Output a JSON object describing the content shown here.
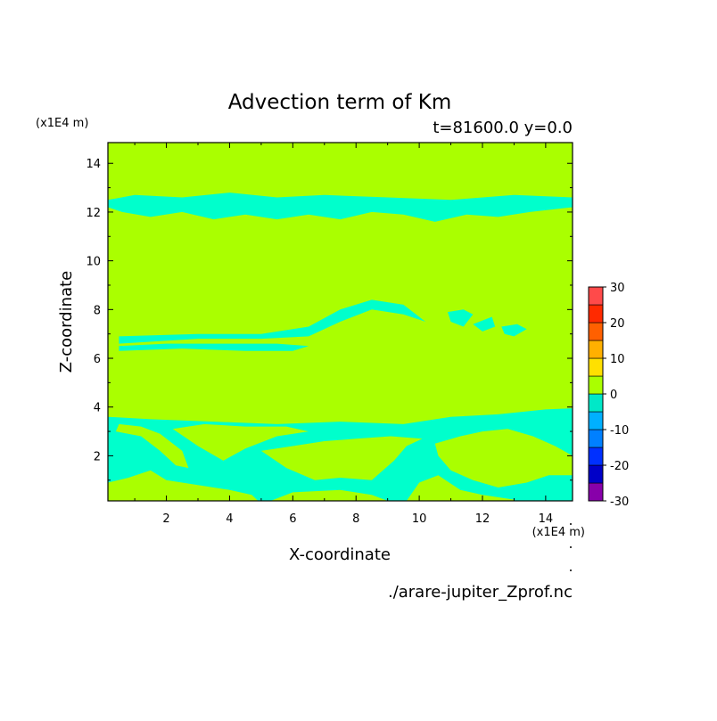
{
  "chart_data": {
    "type": "heatmap",
    "title": "Advection term of Km",
    "subtitle": "t=81600.0 y=0.0",
    "xlabel": "X-coordinate",
    "ylabel": "Z-coordinate",
    "x_unit": "(x1E4 m)",
    "y_unit": "(x1E4 m)",
    "source_file": "./arare-jupiter_Zprof.nc",
    "xlim": [
      0.15,
      14.85
    ],
    "ylim": [
      0.15,
      14.85
    ],
    "x_ticks": [
      "2",
      "4",
      "6",
      "8",
      "10",
      "12",
      "14"
    ],
    "x_tick_values": [
      2,
      4,
      6,
      8,
      10,
      12,
      14
    ],
    "y_ticks": [
      "2",
      "4",
      "6",
      "8",
      "10",
      "12",
      "14"
    ],
    "y_tick_values": [
      2,
      4,
      6,
      8,
      10,
      12,
      14
    ],
    "colorbar": {
      "levels": [
        -30,
        -25,
        -20,
        -15,
        -10,
        -5,
        0,
        5,
        10,
        15,
        20,
        25,
        30
      ],
      "labels": [
        "30",
        "20",
        "10",
        "0",
        "-10",
        "-20",
        "-30"
      ],
      "label_values": [
        30,
        20,
        10,
        0,
        -10,
        -20,
        -30
      ],
      "colors": [
        "#8800aa",
        "#0000c8",
        "#0030ff",
        "#0080ff",
        "#00b0ff",
        "#00e8c8",
        "#aaff00",
        "#ffe000",
        "#ffb000",
        "#ff6000",
        "#ff2a00",
        "#ff4a4a"
      ]
    },
    "background_interval": "0 to 5",
    "background_color": "#aaff00",
    "negative_color": "#00ffcc",
    "negative_regions": [
      {
        "label": "band near z=12.2",
        "polygon": [
          [
            0.15,
            12.5
          ],
          [
            1.0,
            12.7
          ],
          [
            2.5,
            12.6
          ],
          [
            4.0,
            12.8
          ],
          [
            5.5,
            12.6
          ],
          [
            7.0,
            12.7
          ],
          [
            9.0,
            12.6
          ],
          [
            11.0,
            12.5
          ],
          [
            13.0,
            12.7
          ],
          [
            14.85,
            12.6
          ],
          [
            14.85,
            12.2
          ],
          [
            13.5,
            12.0
          ],
          [
            12.5,
            11.8
          ],
          [
            11.5,
            11.9
          ],
          [
            10.5,
            11.6
          ],
          [
            9.5,
            11.9
          ],
          [
            8.5,
            12.0
          ],
          [
            7.5,
            11.7
          ],
          [
            6.5,
            11.9
          ],
          [
            5.5,
            11.7
          ],
          [
            4.5,
            11.9
          ],
          [
            3.5,
            11.7
          ],
          [
            2.5,
            12.0
          ],
          [
            1.5,
            11.8
          ],
          [
            0.6,
            12.0
          ],
          [
            0.15,
            12.2
          ]
        ]
      },
      {
        "label": "upper strip near z=7",
        "polygon": [
          [
            0.5,
            6.9
          ],
          [
            3.0,
            7.0
          ],
          [
            5.0,
            7.0
          ],
          [
            6.5,
            7.3
          ],
          [
            7.5,
            8.0
          ],
          [
            8.5,
            8.4
          ],
          [
            9.5,
            8.2
          ],
          [
            10.2,
            7.5
          ],
          [
            9.5,
            7.8
          ],
          [
            8.5,
            8.0
          ],
          [
            7.5,
            7.5
          ],
          [
            6.5,
            6.9
          ],
          [
            5.0,
            6.8
          ],
          [
            3.0,
            6.8
          ],
          [
            0.5,
            6.6
          ]
        ]
      },
      {
        "label": "lower strip near z=6.5",
        "polygon": [
          [
            0.5,
            6.5
          ],
          [
            2.0,
            6.6
          ],
          [
            4.0,
            6.6
          ],
          [
            5.5,
            6.6
          ],
          [
            6.5,
            6.5
          ],
          [
            6.0,
            6.3
          ],
          [
            4.5,
            6.3
          ],
          [
            2.5,
            6.4
          ],
          [
            0.5,
            6.3
          ]
        ]
      },
      {
        "label": "blob near x=11.5",
        "polygon": [
          [
            10.9,
            7.9
          ],
          [
            11.4,
            8.0
          ],
          [
            11.7,
            7.8
          ],
          [
            11.4,
            7.3
          ],
          [
            11.0,
            7.5
          ]
        ]
      },
      {
        "label": "blob near x=12",
        "polygon": [
          [
            11.7,
            7.4
          ],
          [
            12.3,
            7.7
          ],
          [
            12.4,
            7.3
          ],
          [
            12.0,
            7.1
          ]
        ]
      },
      {
        "label": "blob near x=12.9",
        "polygon": [
          [
            12.6,
            7.3
          ],
          [
            13.1,
            7.4
          ],
          [
            13.4,
            7.2
          ],
          [
            13.0,
            6.9
          ],
          [
            12.7,
            7.0
          ]
        ]
      },
      {
        "label": "bottom band",
        "polygon": [
          [
            0.15,
            3.6
          ],
          [
            1.5,
            3.5
          ],
          [
            3.5,
            3.4
          ],
          [
            5.5,
            3.3
          ],
          [
            7.5,
            3.4
          ],
          [
            9.5,
            3.3
          ],
          [
            11.0,
            3.6
          ],
          [
            12.5,
            3.7
          ],
          [
            14.0,
            3.9
          ],
          [
            14.85,
            3.95
          ],
          [
            14.85,
            0.15
          ],
          [
            0.15,
            0.15
          ]
        ]
      }
    ],
    "positive_holes": [
      {
        "label": "left lobe",
        "polygon": [
          [
            0.4,
            3.0
          ],
          [
            1.2,
            2.8
          ],
          [
            1.8,
            2.2
          ],
          [
            2.3,
            1.6
          ],
          [
            2.7,
            1.5
          ],
          [
            2.5,
            2.2
          ],
          [
            1.8,
            2.9
          ],
          [
            1.2,
            3.2
          ],
          [
            0.5,
            3.3
          ]
        ]
      },
      {
        "label": "lower-left gap",
        "polygon": [
          [
            0.15,
            0.9
          ],
          [
            0.8,
            1.1
          ],
          [
            1.5,
            1.4
          ],
          [
            2.0,
            1.0
          ],
          [
            3.0,
            0.8
          ],
          [
            4.0,
            0.6
          ],
          [
            4.7,
            0.4
          ],
          [
            4.9,
            0.15
          ],
          [
            0.15,
            0.15
          ]
        ]
      },
      {
        "label": "mid pocket",
        "polygon": [
          [
            2.2,
            3.1
          ],
          [
            3.0,
            2.4
          ],
          [
            3.8,
            1.8
          ],
          [
            4.5,
            2.3
          ],
          [
            5.5,
            2.8
          ],
          [
            6.5,
            3.0
          ],
          [
            5.8,
            3.2
          ],
          [
            4.5,
            3.2
          ],
          [
            3.2,
            3.3
          ]
        ]
      },
      {
        "label": "central gap",
        "polygon": [
          [
            5.0,
            2.2
          ],
          [
            5.8,
            1.5
          ],
          [
            6.7,
            1.0
          ],
          [
            7.5,
            1.1
          ],
          [
            8.5,
            1.0
          ],
          [
            9.2,
            1.8
          ],
          [
            9.6,
            2.4
          ],
          [
            10.1,
            2.7
          ],
          [
            9.1,
            2.8
          ],
          [
            8.0,
            2.7
          ],
          [
            7.0,
            2.6
          ],
          [
            6.0,
            2.4
          ]
        ]
      },
      {
        "label": "floor pocket",
        "polygon": [
          [
            5.3,
            0.15
          ],
          [
            6.0,
            0.5
          ],
          [
            7.5,
            0.6
          ],
          [
            8.5,
            0.4
          ],
          [
            9.0,
            0.15
          ]
        ]
      },
      {
        "label": "right lobe",
        "polygon": [
          [
            10.5,
            2.5
          ],
          [
            11.3,
            2.8
          ],
          [
            12.0,
            3.0
          ],
          [
            12.8,
            3.1
          ],
          [
            13.6,
            2.8
          ],
          [
            14.3,
            2.4
          ],
          [
            14.85,
            2.0
          ],
          [
            14.85,
            1.2
          ],
          [
            14.1,
            1.2
          ],
          [
            13.4,
            0.9
          ],
          [
            12.5,
            0.7
          ],
          [
            11.7,
            1.0
          ],
          [
            11.0,
            1.4
          ],
          [
            10.6,
            2.0
          ]
        ]
      },
      {
        "label": "floor right",
        "polygon": [
          [
            9.6,
            0.15
          ],
          [
            10.0,
            0.9
          ],
          [
            10.6,
            1.2
          ],
          [
            11.3,
            0.6
          ],
          [
            12.0,
            0.4
          ],
          [
            13.0,
            0.2
          ],
          [
            13.0,
            0.15
          ]
        ]
      }
    ]
  }
}
